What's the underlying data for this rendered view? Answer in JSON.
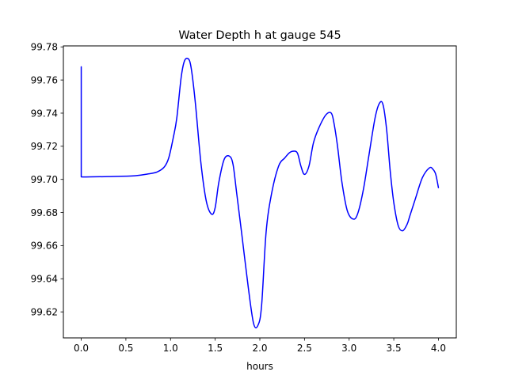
{
  "chart_data": {
    "type": "line",
    "title": "Water Depth h at gauge 545",
    "xlabel": "hours",
    "ylabel": "",
    "xlim": [
      -0.2,
      4.2
    ],
    "ylim": [
      99.6043,
      99.7806
    ],
    "x_ticks": [
      0.0,
      0.5,
      1.0,
      1.5,
      2.0,
      2.5,
      3.0,
      3.5,
      4.0
    ],
    "x_tick_labels": [
      "0.0",
      "0.5",
      "1.0",
      "1.5",
      "2.0",
      "2.5",
      "3.0",
      "3.5",
      "4.0"
    ],
    "y_ticks": [
      99.62,
      99.64,
      99.66,
      99.68,
      99.7,
      99.72,
      99.74,
      99.76,
      99.78
    ],
    "y_tick_labels": [
      "99.62",
      "99.64",
      "99.66",
      "99.68",
      "99.70",
      "99.72",
      "99.74",
      "99.76",
      "99.78"
    ],
    "grid": false,
    "legend": "none",
    "series": [
      {
        "color": "#0000ff",
        "x": [
          0.0,
          0.0,
          0.1,
          0.3,
          0.6,
          0.75,
          0.85,
          0.93,
          0.98,
          1.03,
          1.07,
          1.12,
          1.16,
          1.21,
          1.24,
          1.28,
          1.34,
          1.4,
          1.46,
          1.5,
          1.54,
          1.6,
          1.66,
          1.7,
          1.74,
          1.8,
          1.87,
          1.93,
          1.98,
          2.02,
          2.07,
          2.13,
          2.21,
          2.28,
          2.33,
          2.37,
          2.42,
          2.46,
          2.5,
          2.55,
          2.6,
          2.66,
          2.74,
          2.8,
          2.83,
          2.87,
          2.92,
          2.98,
          3.05,
          3.1,
          3.16,
          3.22,
          3.29,
          3.34,
          3.38,
          3.42,
          3.46,
          3.5,
          3.55,
          3.6,
          3.65,
          3.68,
          3.74,
          3.82,
          3.9,
          3.94,
          3.97,
          4.0
        ],
        "values": [
          99.768,
          99.7015,
          99.7015,
          99.7017,
          99.7022,
          99.7033,
          99.7045,
          99.7075,
          99.713,
          99.725,
          99.737,
          99.762,
          99.772,
          99.772,
          99.764,
          99.745,
          99.71,
          99.687,
          99.679,
          99.683,
          99.698,
          99.712,
          99.714,
          99.709,
          99.692,
          99.666,
          99.635,
          99.613,
          99.612,
          99.624,
          99.668,
          99.691,
          99.708,
          99.713,
          99.716,
          99.717,
          99.716,
          99.708,
          99.703,
          99.708,
          99.722,
          99.731,
          99.739,
          99.74,
          99.734,
          99.72,
          99.698,
          99.681,
          99.676,
          99.68,
          99.694,
          99.714,
          99.737,
          99.746,
          99.745,
          99.73,
          99.705,
          99.686,
          99.672,
          99.669,
          99.673,
          99.678,
          99.688,
          99.701,
          99.707,
          99.706,
          99.703,
          99.695
        ]
      }
    ]
  }
}
